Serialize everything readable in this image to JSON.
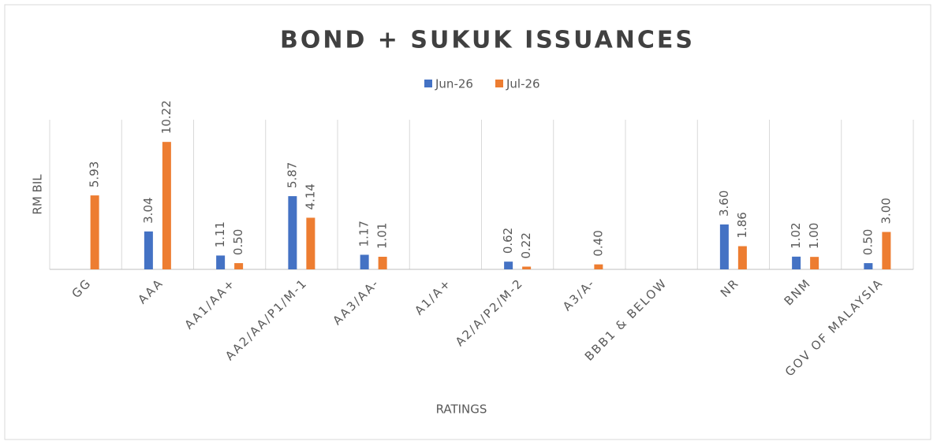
{
  "chart_data": {
    "type": "bar",
    "title": "BOND + SUKUK ISSUANCES",
    "x_label": "RATINGS",
    "y_label": "RM BIL",
    "categories": [
      "GG",
      "AAA",
      "AA1/AA+",
      "AA2/AA/P1/M-1",
      "AA3/AA-",
      "A1/A+",
      "A2/A/P2/M-2",
      "A3/A-",
      "BBB1 & BELOW",
      "NR",
      "BNM",
      "GOV OF MALAYSIA"
    ],
    "series": [
      {
        "name": "Jun-26",
        "color": "#4472c4",
        "values": [
          null,
          3.04,
          1.11,
          5.87,
          1.17,
          null,
          0.62,
          null,
          null,
          3.6,
          1.02,
          0.5
        ],
        "value_labels": [
          null,
          "3.04",
          "1.11",
          "5.87",
          "1.17",
          null,
          "0.62",
          null,
          null,
          "3.60",
          "1.02",
          "0.50"
        ]
      },
      {
        "name": "Jul-26",
        "color": "#ed7d31",
        "values": [
          5.93,
          10.22,
          0.5,
          4.14,
          1.01,
          null,
          0.22,
          0.4,
          null,
          1.86,
          1.0,
          3.0
        ],
        "value_labels": [
          "5.93",
          "10.22",
          "0.50",
          "4.14",
          "1.01",
          null,
          "0.22",
          "0.40",
          null,
          "1.86",
          "1.00",
          "3.00"
        ]
      }
    ],
    "ylim": [
      0,
      12
    ],
    "legend": "top"
  }
}
